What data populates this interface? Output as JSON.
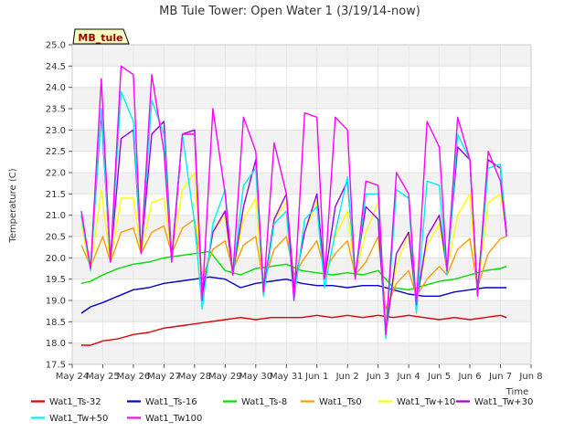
{
  "chart_data": {
    "type": "line",
    "title": "MB Tule Tower: Open Water 1 (3/19/14-now)",
    "xlabel": "Time",
    "ylabel": "Temperature (C)",
    "ylim": [
      17.5,
      25.0
    ],
    "xlim": [
      0,
      15
    ],
    "grid": true,
    "station_label": "MB_tule",
    "x_ticks": [
      "May 24",
      "May 25",
      "May 26",
      "May 27",
      "May 28",
      "May 29",
      "May 30",
      "May 31",
      "Jun 1",
      "Jun 2",
      "Jun 3",
      "Jun 4",
      "Jun 5",
      "Jun 6",
      "Jun 7",
      "Jun 8"
    ],
    "y_ticks": [
      "17.5",
      "18.0",
      "18.5",
      "19.0",
      "19.5",
      "20.0",
      "20.5",
      "21.0",
      "21.5",
      "22.0",
      "22.5",
      "23.0",
      "23.5",
      "24.0",
      "24.5",
      "25.0"
    ],
    "series": [
      {
        "name": "Wat1_Ts-32",
        "color": "#dd0000",
        "x": [
          0.3,
          0.6,
          1.0,
          1.5,
          2.0,
          2.5,
          3.0,
          3.5,
          4.0,
          4.5,
          5.0,
          5.5,
          6.0,
          6.5,
          7.0,
          7.5,
          8.0,
          8.5,
          9.0,
          9.5,
          10.0,
          10.5,
          11.0,
          11.5,
          12.0,
          12.5,
          13.0,
          13.5,
          14.0,
          14.2
        ],
        "y": [
          17.95,
          17.95,
          18.05,
          18.1,
          18.2,
          18.25,
          18.35,
          18.4,
          18.45,
          18.5,
          18.55,
          18.6,
          18.55,
          18.6,
          18.6,
          18.6,
          18.65,
          18.6,
          18.65,
          18.6,
          18.65,
          18.6,
          18.65,
          18.6,
          18.55,
          18.6,
          18.55,
          18.6,
          18.65,
          18.6
        ]
      },
      {
        "name": "Wat1_Ts-16",
        "color": "#0000cc",
        "x": [
          0.3,
          0.6,
          1.0,
          1.5,
          2.0,
          2.5,
          3.0,
          3.5,
          4.0,
          4.5,
          5.0,
          5.5,
          6.0,
          6.5,
          7.0,
          7.5,
          8.0,
          8.5,
          9.0,
          9.5,
          10.0,
          10.5,
          11.0,
          11.5,
          12.0,
          12.5,
          13.0,
          13.5,
          14.0,
          14.2
        ],
        "y": [
          18.7,
          18.85,
          18.95,
          19.1,
          19.25,
          19.3,
          19.4,
          19.45,
          19.5,
          19.55,
          19.5,
          19.3,
          19.4,
          19.45,
          19.5,
          19.4,
          19.35,
          19.35,
          19.3,
          19.35,
          19.35,
          19.25,
          19.15,
          19.1,
          19.1,
          19.2,
          19.25,
          19.3,
          19.3,
          19.3
        ]
      },
      {
        "name": "Wat1_Ts-8",
        "color": "#00dd00",
        "x": [
          0.3,
          0.6,
          1.0,
          1.5,
          2.0,
          2.5,
          3.0,
          3.5,
          4.0,
          4.5,
          5.0,
          5.5,
          6.0,
          6.5,
          7.0,
          7.5,
          8.0,
          8.5,
          9.0,
          9.5,
          10.0,
          10.5,
          11.0,
          11.5,
          12.0,
          12.5,
          13.0,
          13.5,
          14.0,
          14.2
        ],
        "y": [
          19.4,
          19.45,
          19.6,
          19.75,
          19.85,
          19.9,
          20.0,
          20.05,
          20.1,
          20.15,
          19.7,
          19.6,
          19.75,
          19.8,
          19.85,
          19.7,
          19.65,
          19.6,
          19.65,
          19.6,
          19.7,
          19.3,
          19.25,
          19.35,
          19.45,
          19.5,
          19.6,
          19.7,
          19.75,
          19.8
        ]
      },
      {
        "name": "Wat1_Ts0",
        "color": "#ff9900",
        "x": [
          0.3,
          0.6,
          1.0,
          1.25,
          1.6,
          2.0,
          2.25,
          2.6,
          3.0,
          3.25,
          3.6,
          4.0,
          4.25,
          4.6,
          5.0,
          5.25,
          5.6,
          6.0,
          6.25,
          6.6,
          7.0,
          7.25,
          7.6,
          8.0,
          8.25,
          8.6,
          9.0,
          9.25,
          9.6,
          10.0,
          10.25,
          10.6,
          11.0,
          11.25,
          11.6,
          12.0,
          12.25,
          12.6,
          13.0,
          13.25,
          13.6,
          14.0,
          14.2
        ],
        "y": [
          20.3,
          19.8,
          20.5,
          19.9,
          20.6,
          20.7,
          20.1,
          20.6,
          20.75,
          20.1,
          20.7,
          20.9,
          19.5,
          20.2,
          20.4,
          19.7,
          20.3,
          20.5,
          19.4,
          20.2,
          20.5,
          19.6,
          20.0,
          20.4,
          19.7,
          20.1,
          20.4,
          19.6,
          19.9,
          20.5,
          18.8,
          19.4,
          19.7,
          19.1,
          19.5,
          19.8,
          19.6,
          20.2,
          20.45,
          19.3,
          20.1,
          20.45,
          20.5
        ]
      },
      {
        "name": "Wat1_Tw+10",
        "color": "#ffff00",
        "x": [
          0.3,
          0.6,
          0.95,
          1.25,
          1.6,
          2.0,
          2.25,
          2.6,
          3.0,
          3.25,
          3.6,
          4.0,
          4.25,
          4.6,
          5.0,
          5.25,
          5.6,
          6.0,
          6.25,
          6.6,
          7.0,
          7.25,
          7.6,
          8.0,
          8.25,
          8.6,
          9.0,
          9.25,
          9.6,
          10.0,
          10.25,
          10.6,
          11.0,
          11.25,
          11.6,
          12.0,
          12.25,
          12.6,
          13.0,
          13.25,
          13.6,
          14.0,
          14.2
        ],
        "y": [
          20.8,
          19.7,
          21.6,
          19.9,
          21.4,
          21.4,
          20.1,
          21.3,
          21.4,
          20.1,
          21.6,
          22.0,
          19.1,
          20.6,
          21.0,
          19.6,
          20.9,
          21.4,
          19.2,
          20.9,
          21.3,
          19.4,
          20.6,
          21.3,
          19.5,
          20.5,
          21.1,
          19.6,
          20.6,
          21.3,
          18.5,
          19.8,
          20.6,
          19.0,
          20.3,
          20.8,
          19.7,
          21.0,
          21.5,
          19.2,
          21.3,
          21.5,
          20.6
        ]
      },
      {
        "name": "Wat1_Tw+30",
        "color": "#9900dd",
        "x": [
          0.3,
          0.6,
          0.95,
          1.25,
          1.6,
          2.0,
          2.25,
          2.6,
          3.0,
          3.25,
          3.6,
          4.0,
          4.25,
          4.6,
          5.0,
          5.25,
          5.6,
          6.0,
          6.25,
          6.6,
          7.0,
          7.25,
          7.6,
          8.0,
          8.25,
          8.6,
          9.0,
          9.25,
          9.6,
          10.0,
          10.25,
          10.6,
          11.0,
          11.25,
          11.6,
          12.0,
          12.25,
          12.6,
          13.0,
          13.25,
          13.6,
          14.0,
          14.2
        ],
        "y": [
          21.0,
          19.75,
          23.4,
          19.9,
          22.8,
          23.0,
          20.1,
          22.9,
          23.2,
          20.0,
          22.9,
          23.0,
          19.1,
          20.6,
          21.1,
          19.6,
          21.2,
          22.3,
          19.2,
          20.9,
          21.5,
          19.3,
          20.6,
          21.5,
          19.5,
          21.2,
          21.8,
          19.6,
          21.2,
          20.9,
          18.2,
          20.1,
          20.6,
          18.9,
          20.5,
          21.0,
          19.7,
          22.6,
          22.3,
          19.2,
          22.3,
          22.1,
          20.6
        ]
      },
      {
        "name": "Wat1_Tw+50",
        "color": "#00eeee",
        "x": [
          0.3,
          0.6,
          0.95,
          1.25,
          1.6,
          2.0,
          2.25,
          2.6,
          3.0,
          3.25,
          3.6,
          4.0,
          4.25,
          4.6,
          5.0,
          5.25,
          5.6,
          6.0,
          6.25,
          6.6,
          7.0,
          7.25,
          7.6,
          8.0,
          8.25,
          8.6,
          9.0,
          9.25,
          9.6,
          10.0,
          10.25,
          10.6,
          11.0,
          11.25,
          11.6,
          12.0,
          12.25,
          12.6,
          13.0,
          13.25,
          13.6,
          14.0,
          14.2
        ],
        "y": [
          21.0,
          19.7,
          23.5,
          19.9,
          23.9,
          23.2,
          20.1,
          23.7,
          22.9,
          19.9,
          22.9,
          20.8,
          18.8,
          20.8,
          21.6,
          19.6,
          21.7,
          22.1,
          19.1,
          20.8,
          21.1,
          19.0,
          20.9,
          21.2,
          19.3,
          20.6,
          21.9,
          19.5,
          21.5,
          21.5,
          18.1,
          21.6,
          21.4,
          18.7,
          21.8,
          21.7,
          19.6,
          22.9,
          22.3,
          19.1,
          22.1,
          22.2,
          20.5
        ]
      },
      {
        "name": "Wat1_Tw100",
        "color": "#ff00ff",
        "x": [
          0.3,
          0.6,
          0.95,
          1.25,
          1.6,
          2.0,
          2.25,
          2.6,
          3.0,
          3.25,
          3.6,
          4.0,
          4.25,
          4.6,
          5.0,
          5.25,
          5.6,
          6.0,
          6.25,
          6.6,
          7.0,
          7.25,
          7.6,
          8.0,
          8.25,
          8.6,
          9.0,
          9.25,
          9.6,
          10.0,
          10.25,
          10.6,
          11.0,
          11.25,
          11.6,
          12.0,
          12.25,
          12.6,
          13.0,
          13.25,
          13.6,
          14.0,
          14.2
        ],
        "y": [
          21.1,
          19.75,
          24.2,
          19.9,
          24.5,
          24.3,
          20.1,
          24.3,
          22.5,
          19.9,
          22.9,
          22.9,
          19.0,
          23.5,
          21.5,
          19.6,
          23.3,
          22.5,
          19.2,
          22.7,
          21.5,
          19.0,
          23.4,
          23.3,
          19.5,
          23.3,
          23.0,
          19.5,
          21.8,
          21.7,
          18.2,
          22.0,
          21.5,
          18.9,
          23.2,
          22.6,
          19.7,
          23.3,
          22.3,
          19.1,
          22.5,
          21.8,
          20.5
        ]
      }
    ]
  }
}
